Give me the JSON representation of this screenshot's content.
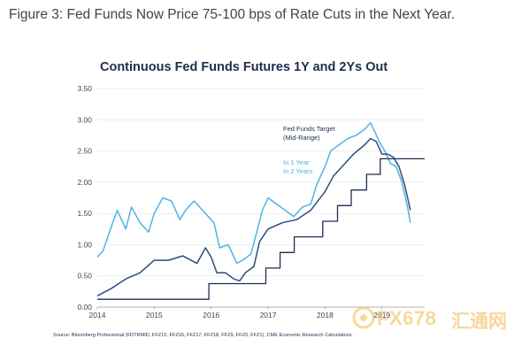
{
  "figure": {
    "caption": "Figure 3: Fed Funds Now Price 75-100 bps of Rate Cuts in the Next Year."
  },
  "chart_data": {
    "type": "line",
    "title": "Continuous Fed Funds Futures 1Y and 2Ys Out",
    "xlabel": "",
    "ylabel": "",
    "xlim": [
      2014.0,
      2019.75
    ],
    "ylim": [
      0.0,
      3.5
    ],
    "grid": true,
    "x_ticks": [
      "2014",
      "2015",
      "2016",
      "2017",
      "2018",
      "2019"
    ],
    "y_ticks": [
      "0.00",
      "0.50",
      "1.00",
      "1.50",
      "2.00",
      "2.50",
      "3.00",
      "3.50"
    ],
    "legend_position": "top-right",
    "series": [
      {
        "name": "Fed Funds Target (Mid-Range)",
        "color": "#1f2d4e",
        "style": "step",
        "x": [
          2014.0,
          2015.96,
          2015.96,
          2016.96,
          2016.96,
          2017.21,
          2017.21,
          2017.46,
          2017.46,
          2017.96,
          2017.96,
          2018.22,
          2018.22,
          2018.46,
          2018.46,
          2018.73,
          2018.73,
          2018.97,
          2018.97,
          2019.75
        ],
        "values": [
          0.125,
          0.125,
          0.375,
          0.375,
          0.625,
          0.625,
          0.875,
          0.875,
          1.125,
          1.125,
          1.375,
          1.375,
          1.625,
          1.625,
          1.875,
          1.875,
          2.125,
          2.125,
          2.375,
          2.375
        ]
      },
      {
        "name": "In 1 Year",
        "color": "#2a4d7c",
        "style": "line",
        "x": [
          2014.0,
          2014.25,
          2014.5,
          2014.75,
          2015.0,
          2015.25,
          2015.5,
          2015.75,
          2015.9,
          2016.0,
          2016.1,
          2016.25,
          2016.4,
          2016.5,
          2016.6,
          2016.75,
          2016.85,
          2017.0,
          2017.25,
          2017.5,
          2017.75,
          2018.0,
          2018.15,
          2018.3,
          2018.5,
          2018.7,
          2018.8,
          2018.9,
          2019.0,
          2019.1,
          2019.2,
          2019.3,
          2019.4,
          2019.5
        ],
        "values": [
          0.18,
          0.3,
          0.45,
          0.55,
          0.75,
          0.75,
          0.82,
          0.7,
          0.95,
          0.8,
          0.55,
          0.55,
          0.45,
          0.42,
          0.55,
          0.65,
          1.05,
          1.25,
          1.35,
          1.4,
          1.55,
          1.85,
          2.1,
          2.25,
          2.45,
          2.6,
          2.7,
          2.65,
          2.45,
          2.45,
          2.4,
          2.25,
          1.95,
          1.55
        ]
      },
      {
        "name": "In 2 Years",
        "color": "#4fb3e3",
        "style": "line",
        "x": [
          2014.0,
          2014.1,
          2014.25,
          2014.35,
          2014.5,
          2014.6,
          2014.75,
          2014.9,
          2015.0,
          2015.15,
          2015.3,
          2015.45,
          2015.55,
          2015.7,
          2015.85,
          2015.95,
          2016.05,
          2016.15,
          2016.3,
          2016.45,
          2016.55,
          2016.7,
          2016.8,
          2016.9,
          2017.0,
          2017.15,
          2017.3,
          2017.45,
          2017.6,
          2017.75,
          2017.85,
          2018.0,
          2018.1,
          2018.25,
          2018.4,
          2018.55,
          2018.7,
          2018.8,
          2018.88,
          2018.95,
          2019.05,
          2019.15,
          2019.25,
          2019.35,
          2019.45,
          2019.5
        ],
        "values": [
          0.8,
          0.9,
          1.3,
          1.55,
          1.25,
          1.6,
          1.35,
          1.2,
          1.5,
          1.75,
          1.7,
          1.4,
          1.55,
          1.7,
          1.55,
          1.45,
          1.35,
          0.95,
          1.0,
          0.7,
          0.75,
          0.85,
          1.2,
          1.55,
          1.75,
          1.65,
          1.55,
          1.45,
          1.6,
          1.65,
          1.95,
          2.25,
          2.5,
          2.6,
          2.7,
          2.75,
          2.85,
          2.95,
          2.8,
          2.65,
          2.5,
          2.3,
          2.25,
          2.0,
          1.6,
          1.35
        ]
      }
    ],
    "legend": {
      "target_label": "Fed Funds Target",
      "target_sublabel": "(Mid-Range)",
      "one_year_label": "In 1 Year",
      "two_year_label": "In 2 Years"
    },
    "source": "Source: Bloomberg Professional (FDTRMID, FFZ15, FFZ16, FFZ17, FFZ18, FFZ9, FFZ0, FFZ1), CME Economic Research Calculations"
  },
  "watermark": {
    "text": "FX678",
    "cn_text": "汇通网"
  }
}
